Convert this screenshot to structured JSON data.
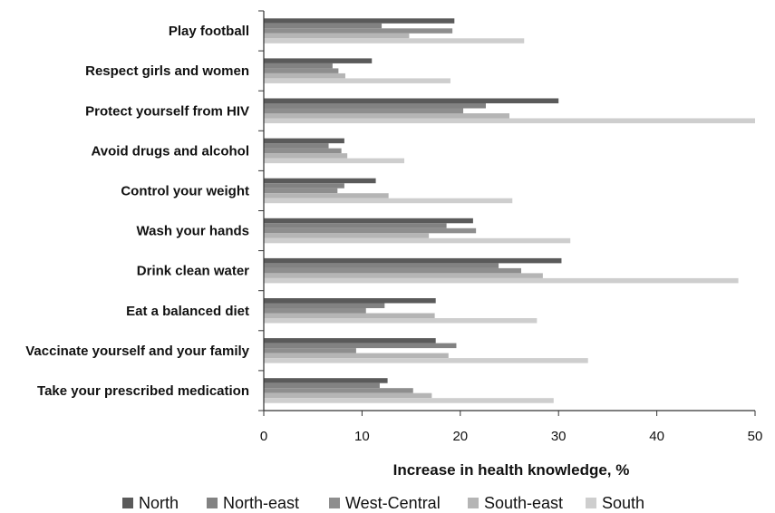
{
  "chart_data": {
    "type": "bar",
    "orientation": "horizontal",
    "categories": [
      "Play football",
      "Respect girls and women",
      "Protect yourself from HIV",
      "Avoid drugs and alcohol",
      "Control your weight",
      "Wash your hands",
      "Drink clean water",
      "Eat a balanced diet",
      "Vaccinate yourself and your family",
      "Take your prescribed medication"
    ],
    "series": [
      {
        "name": "North",
        "color": "#5a5a5a",
        "values": [
          19.4,
          11.0,
          30.0,
          8.2,
          11.4,
          21.3,
          30.3,
          17.5,
          17.5,
          12.6
        ]
      },
      {
        "name": "North-east",
        "color": "#828282",
        "values": [
          12.0,
          7.0,
          22.6,
          6.6,
          8.2,
          18.6,
          23.9,
          12.3,
          19.6,
          11.8
        ]
      },
      {
        "name": "West-Central",
        "color": "#8e8e8e",
        "values": [
          19.2,
          7.6,
          20.3,
          7.9,
          7.5,
          21.6,
          26.2,
          10.4,
          9.4,
          15.2
        ]
      },
      {
        "name": "South-east",
        "color": "#b5b5b5",
        "values": [
          14.8,
          8.3,
          25.0,
          8.5,
          12.7,
          16.8,
          28.4,
          17.4,
          18.8,
          17.1
        ]
      },
      {
        "name": "South",
        "color": "#cecece",
        "values": [
          26.5,
          19.0,
          50.0,
          14.3,
          25.3,
          31.2,
          48.3,
          27.8,
          33.0,
          29.5
        ]
      }
    ],
    "xlabel": "Increase in health knowledge, %",
    "xlim": [
      0,
      50
    ],
    "xticks": [
      0,
      10,
      20,
      30,
      40,
      50
    ],
    "grid": false,
    "legend_position": "bottom"
  }
}
